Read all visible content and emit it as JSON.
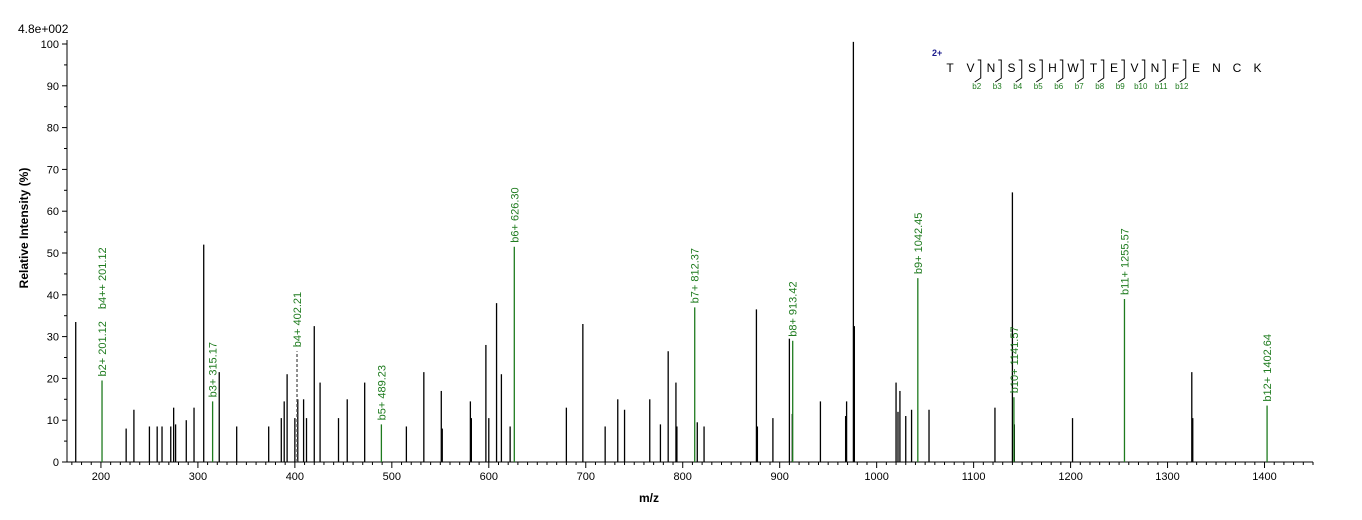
{
  "chart_data": {
    "type": "bar",
    "subtype": "mass-spectrum",
    "scale_label": "4.8e+002",
    "xlabel": "m/z",
    "ylabel": "Relative   Intensity (%)",
    "xlim": [
      165,
      1450
    ],
    "ylim": [
      0,
      100
    ],
    "x_ticks": [
      200,
      300,
      400,
      500,
      600,
      700,
      800,
      900,
      1000,
      1100,
      1200,
      1300,
      1400
    ],
    "y_ticks": [
      0,
      10,
      20,
      30,
      40,
      50,
      60,
      70,
      80,
      90,
      100
    ],
    "colors": {
      "unmatched": "#000000",
      "matched": "#1e7b1e",
      "charge": "#1a1a8c"
    },
    "unmatched_peaks": [
      {
        "x": 174,
        "y": 33.5
      },
      {
        "x": 226,
        "y": 8
      },
      {
        "x": 234,
        "y": 12.5
      },
      {
        "x": 250,
        "y": 8.5
      },
      {
        "x": 258,
        "y": 8.5
      },
      {
        "x": 263,
        "y": 8.5
      },
      {
        "x": 272,
        "y": 8.5
      },
      {
        "x": 275,
        "y": 13
      },
      {
        "x": 277,
        "y": 9
      },
      {
        "x": 288,
        "y": 10
      },
      {
        "x": 296,
        "y": 13
      },
      {
        "x": 306,
        "y": 52
      },
      {
        "x": 322,
        "y": 21.5
      },
      {
        "x": 340,
        "y": 8.5
      },
      {
        "x": 373,
        "y": 8.5
      },
      {
        "x": 386,
        "y": 10.5
      },
      {
        "x": 389,
        "y": 14.5
      },
      {
        "x": 392,
        "y": 21
      },
      {
        "x": 400,
        "y": 10.5
      },
      {
        "x": 403,
        "y": 15
      },
      {
        "x": 409,
        "y": 15
      },
      {
        "x": 412,
        "y": 10.5
      },
      {
        "x": 420,
        "y": 32.5
      },
      {
        "x": 426,
        "y": 19
      },
      {
        "x": 445,
        "y": 10.5
      },
      {
        "x": 454,
        "y": 15
      },
      {
        "x": 472,
        "y": 19
      },
      {
        "x": 515,
        "y": 8.5
      },
      {
        "x": 533,
        "y": 21.5
      },
      {
        "x": 551,
        "y": 17
      },
      {
        "x": 552,
        "y": 8
      },
      {
        "x": 581,
        "y": 14.5
      },
      {
        "x": 582,
        "y": 10.5
      },
      {
        "x": 597,
        "y": 28
      },
      {
        "x": 600,
        "y": 10.5
      },
      {
        "x": 608,
        "y": 38
      },
      {
        "x": 613,
        "y": 21
      },
      {
        "x": 622,
        "y": 8.5
      },
      {
        "x": 680,
        "y": 13
      },
      {
        "x": 697,
        "y": 33
      },
      {
        "x": 720,
        "y": 8.5
      },
      {
        "x": 733,
        "y": 15
      },
      {
        "x": 740,
        "y": 12.5
      },
      {
        "x": 766,
        "y": 15
      },
      {
        "x": 777,
        "y": 9
      },
      {
        "x": 785,
        "y": 26.5
      },
      {
        "x": 793,
        "y": 19
      },
      {
        "x": 794,
        "y": 8.5
      },
      {
        "x": 815,
        "y": 9.5
      },
      {
        "x": 822,
        "y": 8.5
      },
      {
        "x": 876,
        "y": 36.5
      },
      {
        "x": 877,
        "y": 8.5
      },
      {
        "x": 893,
        "y": 10.5
      },
      {
        "x": 910,
        "y": 29.5
      },
      {
        "x": 913,
        "y": 11.5
      },
      {
        "x": 942,
        "y": 14.5
      },
      {
        "x": 968,
        "y": 11
      },
      {
        "x": 969,
        "y": 14.5
      },
      {
        "x": 976,
        "y": 100.5
      },
      {
        "x": 977,
        "y": 32.5
      },
      {
        "x": 1020,
        "y": 19
      },
      {
        "x": 1022,
        "y": 12
      },
      {
        "x": 1024,
        "y": 17
      },
      {
        "x": 1030,
        "y": 11
      },
      {
        "x": 1036,
        "y": 12.5
      },
      {
        "x": 1054,
        "y": 12.5
      },
      {
        "x": 1122,
        "y": 13
      },
      {
        "x": 1140,
        "y": 64.5
      },
      {
        "x": 1142,
        "y": 9
      },
      {
        "x": 1202,
        "y": 10.5
      },
      {
        "x": 1325,
        "y": 21.5
      },
      {
        "x": 1326,
        "y": 10.5
      }
    ],
    "matched_peaks": [
      {
        "x": 201.12,
        "y": 19.5,
        "label": "b2+ 201.12",
        "dashed": false
      },
      {
        "x": 201.12,
        "y": 19.5,
        "label": "b4++ 201.12",
        "dashed": false,
        "label_only": true
      },
      {
        "x": 315.17,
        "y": 14.5,
        "label": "b3+ 315.17",
        "dashed": false
      },
      {
        "x": 402.21,
        "y": 26.5,
        "label": "b4+ 402.21",
        "dashed": true
      },
      {
        "x": 489.23,
        "y": 9,
        "label": "b5+ 489.23",
        "dashed": false
      },
      {
        "x": 626.3,
        "y": 51.5,
        "label": "b6+ 626.30",
        "dashed": false
      },
      {
        "x": 812.37,
        "y": 37,
        "label": "b7+ 812.37",
        "dashed": false
      },
      {
        "x": 913.42,
        "y": 29,
        "label": "b8+ 913.42",
        "dashed": false
      },
      {
        "x": 1042.45,
        "y": 44,
        "label": "b9+ 1042.45",
        "dashed": false
      },
      {
        "x": 1141.57,
        "y": 15.5,
        "label": "b10+ 1141.57",
        "dashed": false
      },
      {
        "x": 1255.57,
        "y": 39,
        "label": "b11+ 1255.57",
        "dashed": false
      },
      {
        "x": 1402.64,
        "y": 13.5,
        "label": "b12+ 1402.64",
        "dashed": false
      }
    ],
    "sequence": {
      "charge": "2+",
      "residues": [
        "T",
        "V",
        "N",
        "S",
        "S",
        "H",
        "W",
        "T",
        "E",
        "V",
        "N",
        "F",
        "E",
        "N",
        "C",
        "K"
      ],
      "b_ions": [
        "b2",
        "b3",
        "b4",
        "b5",
        "b6",
        "b7",
        "b8",
        "b9",
        "b10",
        "b11",
        "b12"
      ]
    }
  }
}
